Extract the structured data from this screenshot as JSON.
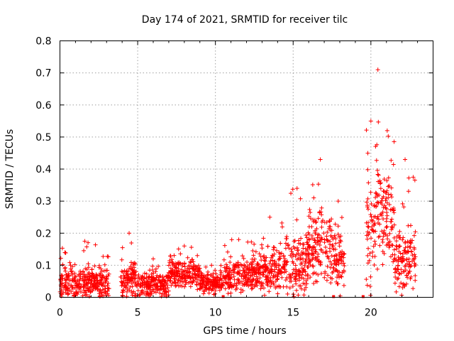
{
  "chart_data": {
    "type": "scatter",
    "title": "Day 174 of 2021, SRMTID for receiver tilc",
    "xlabel": "GPS time / hours",
    "ylabel": "SRMTID / TECUs",
    "xlim": [
      0,
      24
    ],
    "ylim": [
      0,
      0.8
    ],
    "xticks": [
      0,
      5,
      10,
      15,
      20
    ],
    "xtick_labels": [
      "0",
      "5",
      "10",
      "15",
      "20"
    ],
    "yticks": [
      0,
      0.1,
      0.2,
      0.3,
      0.4,
      0.5,
      0.6,
      0.7,
      0.8
    ],
    "ytick_labels": [
      "0",
      "0.1",
      "0.2",
      "0.3",
      "0.4",
      "0.5",
      "0.6",
      "0.7",
      "0.8"
    ],
    "grid": true,
    "marker": "plus",
    "color": "#ff0000",
    "series": [
      {
        "name": "SRMTID",
        "segments": [
          {
            "x_range": [
              0.0,
              3.2
            ],
            "base": 0.045,
            "spread": 0.05,
            "peak_max": 0.175
          },
          {
            "x_range": [
              3.9,
              5.0
            ],
            "base": 0.05,
            "spread": 0.06,
            "peak_max": 0.2
          },
          {
            "x_range": [
              5.0,
              7.0
            ],
            "base": 0.04,
            "spread": 0.04,
            "peak_max": 0.12
          },
          {
            "x_range": [
              7.0,
              9.0
            ],
            "base": 0.075,
            "spread": 0.04,
            "peak_max": 0.16
          },
          {
            "x_range": [
              9.0,
              10.5
            ],
            "base": 0.045,
            "spread": 0.03,
            "peak_max": 0.1
          },
          {
            "x_range": [
              10.5,
              12.5
            ],
            "base": 0.07,
            "spread": 0.05,
            "peak_max": 0.18
          },
          {
            "x_range": [
              12.5,
              14.5
            ],
            "base": 0.08,
            "spread": 0.07,
            "peak_max": 0.25
          },
          {
            "x_range": [
              14.5,
              16.0
            ],
            "base": 0.1,
            "spread": 0.1,
            "peak_max": 0.34
          },
          {
            "x_range": [
              16.0,
              17.5
            ],
            "base": 0.15,
            "spread": 0.12,
            "peak_max": 0.43
          },
          {
            "x_range": [
              17.5,
              18.3
            ],
            "base": 0.12,
            "spread": 0.09,
            "peak_max": 0.3
          },
          {
            "x_range": [
              19.7,
              20.3
            ],
            "base": 0.2,
            "spread": 0.15,
            "peak_max": 0.55
          },
          {
            "x_range": [
              20.3,
              20.6
            ],
            "base": 0.3,
            "spread": 0.2,
            "peak_max": 0.71
          },
          {
            "x_range": [
              20.6,
              21.5
            ],
            "base": 0.25,
            "spread": 0.15,
            "peak_max": 0.52
          },
          {
            "x_range": [
              21.5,
              22.9
            ],
            "base": 0.12,
            "spread": 0.09,
            "peak_max": 0.43
          }
        ],
        "zero_markers_x": [
          10.5,
          17.6,
          19.5
        ]
      }
    ]
  }
}
